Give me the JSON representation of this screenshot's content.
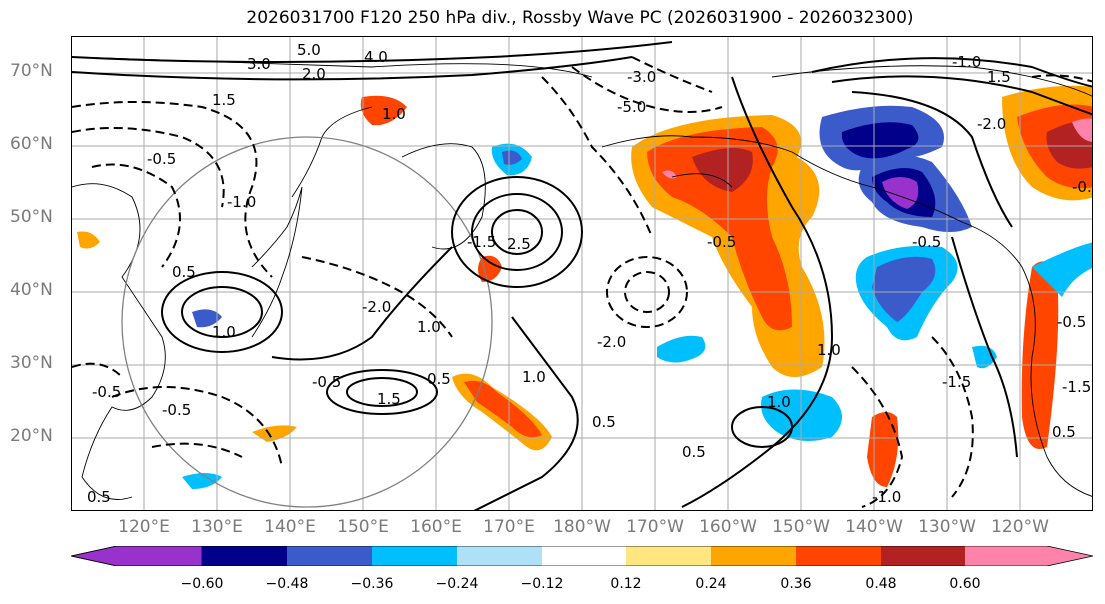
{
  "title": "2026031700 F120 250 hPa div., Rossby Wave PC (2026031900 - 2026032300)",
  "lat_labels": [
    "70°N",
    "60°N",
    "50°N",
    "40°N",
    "30°N",
    "20°N"
  ],
  "lon_labels": [
    "120°E",
    "130°E",
    "140°E",
    "150°E",
    "160°E",
    "170°E",
    "180°W",
    "170°W",
    "160°W",
    "150°W",
    "140°W",
    "130°W",
    "120°W"
  ],
  "colorbar": {
    "colors": [
      "#9932cc",
      "#00008b",
      "#3a5bc9",
      "#00bfff",
      "#aee0f7",
      "#ffffff",
      "#ffe680",
      "#ffa500",
      "#ff4500",
      "#b22222",
      "#ff82ab"
    ],
    "tick_labels": [
      "−0.60",
      "−0.48",
      "−0.36",
      "−0.24",
      "−0.12",
      "0.12",
      "0.24",
      "0.36",
      "0.48",
      "0.60"
    ]
  },
  "contour_labels": [
    "5.0",
    "4.0",
    "3.0",
    "2.0",
    "1.0",
    "1.5",
    "0.5",
    "-0.5",
    "-1.0",
    "-1.5",
    "-2.0",
    "-3.0",
    "-5.0",
    "2.5",
    "1.0",
    "0.5",
    "-0.5",
    "1.5",
    "-0.5",
    "1.0",
    "0.5",
    "-0.5",
    "1.0",
    "-2.0",
    "-1.0",
    "1.5",
    "-0.5",
    "-1.0",
    "1.0",
    "0.5",
    "-1.5",
    "-0.5",
    "1.0",
    "0.5",
    "-2.0",
    "-0.5",
    "-1.5",
    "-0.5",
    "0.5"
  ]
}
